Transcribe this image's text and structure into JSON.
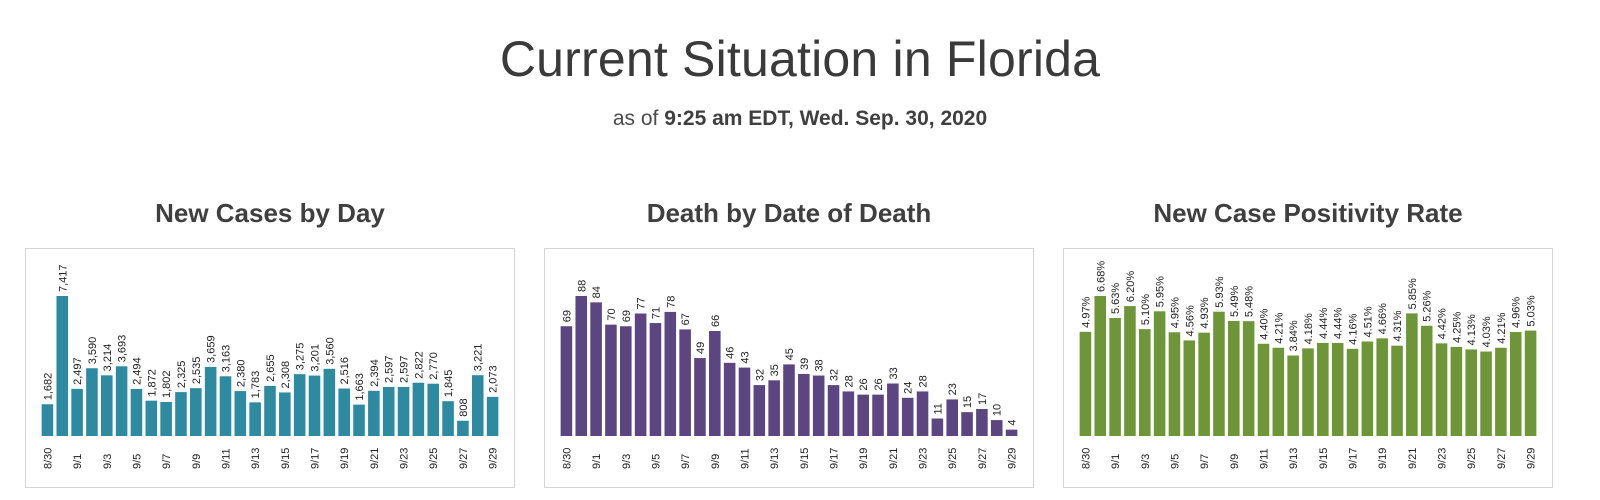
{
  "header": {
    "title": "Current Situation in Florida",
    "subtitle_prefix": "as of ",
    "subtitle_time": "9:25 am EDT, Wed. Sep. 30, 2020"
  },
  "chart_data": [
    {
      "type": "bar",
      "title": "New Cases by Day",
      "color": "#2e8aa0",
      "categories": [
        "8/30",
        "8/31",
        "9/1",
        "9/2",
        "9/3",
        "9/4",
        "9/5",
        "9/6",
        "9/7",
        "9/8",
        "9/9",
        "9/10",
        "9/11",
        "9/12",
        "9/13",
        "9/14",
        "9/15",
        "9/16",
        "9/17",
        "9/18",
        "9/19",
        "9/20",
        "9/21",
        "9/22",
        "9/23",
        "9/24",
        "9/25",
        "9/26",
        "9/27",
        "9/28",
        "9/29"
      ],
      "tick_labels": [
        "8/30",
        "9/1",
        "9/3",
        "9/5",
        "9/7",
        "9/9",
        "9/11",
        "9/13",
        "9/15",
        "9/17",
        "9/19",
        "9/21",
        "9/23",
        "9/25",
        "9/27",
        "9/29"
      ],
      "values": [
        1682,
        7417,
        2497,
        3590,
        3214,
        3693,
        2494,
        1872,
        1802,
        2325,
        2535,
        3659,
        3163,
        2380,
        1783,
        2655,
        2308,
        3275,
        3201,
        3560,
        2516,
        1663,
        2394,
        2597,
        2597,
        2822,
        2770,
        1845,
        808,
        3221,
        2073
      ],
      "labels": [
        "1,682",
        "7,417",
        "2,497",
        "3,590",
        "3,214",
        "3,693",
        "2,494",
        "1,872",
        "1,802",
        "2,325",
        "2,535",
        "3,659",
        "3,163",
        "2,380",
        "1,783",
        "2,655",
        "2,308",
        "3,275",
        "3,201",
        "3,560",
        "2,516",
        "1,663",
        "2,394",
        "2,597",
        "2,597",
        "2,822",
        "2,770",
        "1,845",
        "808",
        "3,221",
        "2,073"
      ],
      "ylim": [
        0,
        7417
      ]
    },
    {
      "type": "bar",
      "title": "Death by Date of Death",
      "color": "#5b4682",
      "categories": [
        "8/30",
        "8/31",
        "9/1",
        "9/2",
        "9/3",
        "9/4",
        "9/5",
        "9/6",
        "9/7",
        "9/8",
        "9/9",
        "9/10",
        "9/11",
        "9/12",
        "9/13",
        "9/14",
        "9/15",
        "9/16",
        "9/17",
        "9/18",
        "9/19",
        "9/20",
        "9/21",
        "9/22",
        "9/23",
        "9/24",
        "9/25",
        "9/26",
        "9/27",
        "9/28",
        "9/29"
      ],
      "tick_labels": [
        "8/30",
        "9/1",
        "9/3",
        "9/5",
        "9/7",
        "9/9",
        "9/11",
        "9/13",
        "9/15",
        "9/17",
        "9/19",
        "9/21",
        "9/23",
        "9/25",
        "9/27",
        "9/29"
      ],
      "values": [
        69,
        88,
        84,
        70,
        69,
        77,
        71,
        78,
        67,
        49,
        66,
        46,
        43,
        32,
        35,
        45,
        39,
        38,
        32,
        28,
        26,
        26,
        33,
        24,
        28,
        11,
        23,
        15,
        17,
        10,
        4
      ],
      "labels": [
        "69",
        "88",
        "84",
        "70",
        "69",
        "77",
        "71",
        "78",
        "67",
        "49",
        "66",
        "46",
        "43",
        "32",
        "35",
        "45",
        "39",
        "38",
        "32",
        "28",
        "26",
        "26",
        "33",
        "24",
        "28",
        "11",
        "23",
        "15",
        "17",
        "10",
        "4"
      ],
      "ylim": [
        0,
        88
      ]
    },
    {
      "type": "bar",
      "title": "New Case Positivity Rate",
      "color": "#6e9638",
      "categories": [
        "8/30",
        "8/31",
        "9/1",
        "9/2",
        "9/3",
        "9/4",
        "9/5",
        "9/6",
        "9/7",
        "9/8",
        "9/9",
        "9/10",
        "9/11",
        "9/12",
        "9/13",
        "9/14",
        "9/15",
        "9/16",
        "9/17",
        "9/18",
        "9/19",
        "9/20",
        "9/21",
        "9/22",
        "9/23",
        "9/24",
        "9/25",
        "9/26",
        "9/27",
        "9/28",
        "9/29"
      ],
      "tick_labels": [
        "8/30",
        "9/1",
        "9/3",
        "9/5",
        "9/7",
        "9/9",
        "9/11",
        "9/13",
        "9/15",
        "9/17",
        "9/19",
        "9/21",
        "9/23",
        "9/25",
        "9/27",
        "9/29"
      ],
      "values": [
        4.97,
        6.68,
        5.63,
        6.2,
        5.1,
        5.95,
        4.95,
        4.56,
        4.93,
        5.93,
        5.49,
        5.48,
        4.4,
        4.21,
        3.84,
        4.18,
        4.44,
        4.44,
        4.16,
        4.51,
        4.66,
        4.31,
        5.85,
        5.26,
        4.42,
        4.25,
        4.13,
        4.03,
        4.21,
        4.96,
        5.03
      ],
      "labels": [
        "4.97%",
        "6.68%",
        "5.63%",
        "6.20%",
        "5.10%",
        "5.95%",
        "4.95%",
        "4.56%",
        "4.93%",
        "5.93%",
        "5.49%",
        "5.48%",
        "4.40%",
        "4.21%",
        "3.84%",
        "4.18%",
        "4.44%",
        "4.44%",
        "4.16%",
        "4.51%",
        "4.66%",
        "4.31%",
        "5.85%",
        "5.26%",
        "4.42%",
        "4.25%",
        "4.13%",
        "4.03%",
        "4.21%",
        "4.96%",
        "5.03%"
      ],
      "ylim": [
        0,
        6.68
      ]
    }
  ]
}
